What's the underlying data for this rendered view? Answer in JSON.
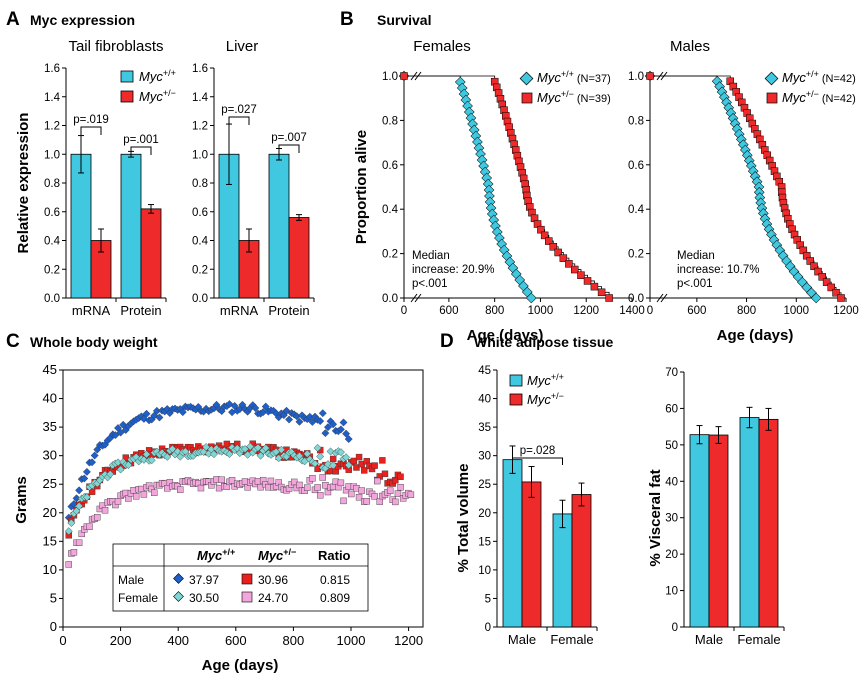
{
  "colors": {
    "wt": "#40c8e0",
    "het": "#ee2a2a",
    "male_wt": "#1f5fc8",
    "male_het": "#e8201e",
    "female_wt": "#7fd6d3",
    "female_het": "#f2a6dc",
    "err": "#000000"
  },
  "panelA": {
    "letter": "A",
    "title": "Myc expression",
    "ylabel": "Relative expression",
    "legend": {
      "wt_gene": "Myc",
      "wt_sup": "+/+",
      "het_gene": "Myc",
      "het_sup": "+/−"
    },
    "chart_data": [
      {
        "type": "bar",
        "title": "Tail fibroblasts",
        "categories": [
          "mRNA",
          "Protein"
        ],
        "ylim": [
          0,
          1.6
        ],
        "yticks": [
          "0.0",
          "0.2",
          "0.4",
          "0.6",
          "0.8",
          "1.0",
          "1.2",
          "1.4",
          "1.6"
        ],
        "series": [
          {
            "name": "Myc+/+",
            "values": [
              1.0,
              1.0
            ],
            "errors": [
              0.13,
              0.02
            ]
          },
          {
            "name": "Myc+/−",
            "values": [
              0.4,
              0.62
            ],
            "errors": [
              0.08,
              0.03
            ]
          }
        ],
        "pvalues": [
          "p=.019",
          "p=.001"
        ]
      },
      {
        "type": "bar",
        "title": "Liver",
        "categories": [
          "mRNA",
          "Protein"
        ],
        "ylim": [
          0,
          1.6
        ],
        "yticks": [
          "0.0",
          "0.2",
          "0.4",
          "0.6",
          "0.8",
          "1.0",
          "1.2",
          "1.4",
          "1.6"
        ],
        "series": [
          {
            "name": "Myc+/+",
            "values": [
              1.0,
              1.0
            ],
            "errors": [
              0.21,
              0.04
            ]
          },
          {
            "name": "Myc+/−",
            "values": [
              0.4,
              0.56
            ],
            "errors": [
              0.08,
              0.02
            ]
          }
        ],
        "pvalues": [
          "p=.027",
          "p=.007"
        ]
      }
    ]
  },
  "panelB": {
    "letter": "B",
    "title": "Survival",
    "ylabel": "Proportion alive",
    "xlabel": "Age (days)",
    "chart_data": [
      {
        "type": "line",
        "title": "Females",
        "xlim": [
          0,
          1400
        ],
        "ylim": [
          0,
          1.0
        ],
        "xticks": [
          "0",
          "600",
          "800",
          "1000",
          "1200",
          "1400"
        ],
        "yticks": [
          "0.0",
          "0.2",
          "0.4",
          "0.6",
          "0.8",
          "1.0"
        ],
        "series": [
          {
            "name": "Myc+/+",
            "n_label": "(N=37)",
            "start_age": 640,
            "median_age": 775,
            "end_age": 960,
            "n": 37
          },
          {
            "name": "Myc+/−",
            "n_label": "(N=39)",
            "start_age": 790,
            "median_age": 937,
            "end_age": 1300,
            "n": 39
          }
        ],
        "annotation": [
          "Median",
          "increase: 20.9%",
          "p<.001"
        ]
      },
      {
        "type": "line",
        "title": "Males",
        "xlim": [
          0,
          1200
        ],
        "ylim": [
          0,
          1.0
        ],
        "xticks": [
          "0",
          "600",
          "800",
          "1000",
          "1200"
        ],
        "yticks": [
          "0.0",
          "0.2",
          "0.4",
          "0.6",
          "0.8",
          "1.0"
        ],
        "series": [
          {
            "name": "Myc+/+",
            "n_label": "(N=42)",
            "start_age": 670,
            "median_age": 850,
            "end_age": 1080,
            "n": 42
          },
          {
            "name": "Myc+/−",
            "n_label": "(N=42)",
            "start_age": 720,
            "median_age": 941,
            "end_age": 1180,
            "n": 42
          }
        ],
        "annotation": [
          "Median",
          "increase: 10.7%",
          "p<.001"
        ]
      }
    ]
  },
  "panelC": {
    "letter": "C",
    "title": "Whole body weight",
    "chart_data": {
      "type": "scatter",
      "xlabel": "Age (days)",
      "ylabel": "Grams",
      "xlim": [
        0,
        1250
      ],
      "ylim": [
        0,
        45
      ],
      "xticks": [
        "0",
        "200",
        "400",
        "600",
        "800",
        "1000",
        "1200"
      ],
      "yticks": [
        "0",
        "5",
        "10",
        "15",
        "20",
        "25",
        "30",
        "35",
        "40",
        "45"
      ],
      "series": [
        {
          "name": "Male Myc+/+",
          "plateau": 37.97,
          "end_day": 1000
        },
        {
          "name": "Male Myc+/−",
          "plateau": 30.96,
          "end_day": 1180
        },
        {
          "name": "Female Myc+/+",
          "plateau": 30.5,
          "end_day": 1000
        },
        {
          "name": "Female Myc+/−",
          "plateau": 24.7,
          "end_day": 1210
        }
      ]
    },
    "table": {
      "headers": [
        "",
        "Myc+/+",
        "Myc+/−",
        "Ratio"
      ],
      "h_wt_gene": "Myc",
      "h_wt_sup": "+/+",
      "h_het_gene": "Myc",
      "h_het_sup": "+/−",
      "h_ratio": "Ratio",
      "rows": [
        {
          "label": "Male",
          "wt": "37.97",
          "het": "30.96",
          "ratio": "0.815"
        },
        {
          "label": "Female",
          "wt": "30.50",
          "het": "24.70",
          "ratio": "0.809"
        }
      ]
    }
  },
  "panelD": {
    "letter": "D",
    "title": "White adipose tissue",
    "legend": {
      "wt_gene": "Myc",
      "wt_sup": "+/+",
      "het_gene": "Myc",
      "het_sup": "+/−"
    },
    "chart_data": [
      {
        "type": "bar",
        "ylabel": "% Total volume",
        "categories": [
          "Male",
          "Female"
        ],
        "ylim": [
          0,
          45
        ],
        "yticks": [
          "0",
          "5",
          "10",
          "15",
          "20",
          "25",
          "30",
          "35",
          "40",
          "45"
        ],
        "series": [
          {
            "name": "Myc+/+",
            "values": [
              29.3,
              19.8
            ],
            "errors": [
              2.4,
              2.4
            ]
          },
          {
            "name": "Myc+/−",
            "values": [
              25.4,
              23.2
            ],
            "errors": [
              2.7,
              2.0
            ]
          }
        ],
        "pvalue": "p=.028"
      },
      {
        "type": "bar",
        "ylabel": "% Visceral fat",
        "categories": [
          "Male",
          "Female"
        ],
        "ylim": [
          0,
          70
        ],
        "yticks": [
          "0",
          "10",
          "20",
          "30",
          "40",
          "50",
          "60",
          "70"
        ],
        "series": [
          {
            "name": "Myc+/+",
            "values": [
              52.8,
              57.5
            ],
            "errors": [
              2.5,
              2.8
            ]
          },
          {
            "name": "Myc+/−",
            "values": [
              52.7,
              57.0
            ],
            "errors": [
              2.3,
              3.0
            ]
          }
        ]
      }
    ]
  }
}
